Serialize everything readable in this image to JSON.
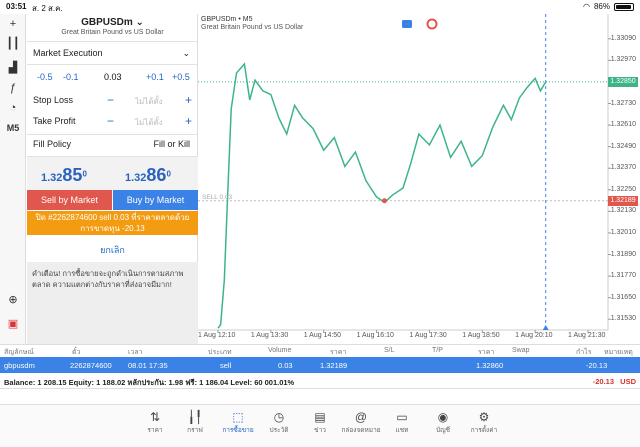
{
  "status": {
    "time": "03:51",
    "date": "ส. 2 ส.ค.",
    "battery": "86%"
  },
  "toolbar": {
    "tools": [
      "crosshair",
      "candle-chart",
      "bar-chart",
      "function",
      "objects",
      "timeframe"
    ],
    "timeframe": "M5"
  },
  "order": {
    "symbol": "GBPUSDm",
    "symbol_desc": "Great Britain Pound vs US Dollar",
    "execution": "Market Execution",
    "vol_steps": [
      "-0.5",
      "-0.1",
      "+0.1",
      "+0.5"
    ],
    "volume": "0.03",
    "stop_loss_label": "Stop Loss",
    "take_profit_label": "Take Profit",
    "placeholder": "ไม่ได้ตั้ง",
    "fill_policy_label": "Fill Policy",
    "fill_policy_value": "Fill or Kill",
    "bid": {
      "prefix": "1.32",
      "big": "85",
      "sup": "0"
    },
    "ask": {
      "prefix": "1.32",
      "big": "86",
      "sup": "0"
    },
    "sell_label": "Sell by Market",
    "buy_label": "Buy by Market",
    "order_msg_line1": "ปิด #2262874600 sell 0.03 ที่ราคาตลาดด้วย",
    "order_msg_line2": "การขาดทุน -20.13",
    "cancel_label": "ยกเลิก",
    "warning": "คำเตือน! การซื้อขายจะถูกดำเนินการตามสภาพตลาด ความแตกต่างกับราคาที่ส่งอาจมีมาก!"
  },
  "chart": {
    "title": "GBPUSDm • M5",
    "desc": "Great Britain Pound vs US Dollar",
    "current_price": "1.32850",
    "sell_label": "SELL 0.03",
    "sell_price": "1.32189",
    "y_ticks": [
      "1.33090",
      "1.32970",
      "1.32850",
      "1.32730",
      "1.32610",
      "1.32490",
      "1.32370",
      "1.32250",
      "1.32130",
      "1.32010",
      "1.31890",
      "1.31770",
      "1.31650",
      "1.31530"
    ],
    "x_ticks": [
      "1 Aug 12:10",
      "1 Aug 13:30",
      "1 Aug 14:50",
      "1 Aug 16:10",
      "1 Aug 17:30",
      "1 Aug 18:50",
      "1 Aug 20:10",
      "1 Aug 21:30"
    ],
    "colors": {
      "line": "#3eb489",
      "sell": "#e0574d",
      "grid": "#e6e6e6"
    }
  },
  "chart_data": {
    "type": "line",
    "x": [
      "1 Aug 12:10",
      "1 Aug 13:30",
      "1 Aug 14:50",
      "1 Aug 16:10",
      "1 Aug 17:30",
      "1 Aug 18:50",
      "1 Aug 20:10"
    ],
    "points": [
      [
        0,
        1.3148
      ],
      [
        0.05,
        1.315
      ],
      [
        0.12,
        1.3175
      ],
      [
        0.18,
        1.322
      ],
      [
        0.25,
        1.327
      ],
      [
        0.35,
        1.329
      ],
      [
        0.5,
        1.3295
      ],
      [
        0.6,
        1.3275
      ],
      [
        0.7,
        1.3286
      ],
      [
        0.85,
        1.328
      ],
      [
        1.0,
        1.3278
      ],
      [
        1.15,
        1.3265
      ],
      [
        1.3,
        1.3256
      ],
      [
        1.45,
        1.3272
      ],
      [
        1.6,
        1.3265
      ],
      [
        1.8,
        1.3259
      ],
      [
        2.0,
        1.3247
      ],
      [
        2.2,
        1.3254
      ],
      [
        2.4,
        1.3238
      ],
      [
        2.6,
        1.3246
      ],
      [
        2.8,
        1.323
      ],
      [
        3.0,
        1.3221
      ],
      [
        3.15,
        1.3218
      ],
      [
        3.3,
        1.3222
      ],
      [
        3.5,
        1.3226
      ],
      [
        3.65,
        1.324
      ],
      [
        3.8,
        1.3256
      ],
      [
        4.0,
        1.325
      ],
      [
        4.2,
        1.3261
      ],
      [
        4.4,
        1.3243
      ],
      [
        4.6,
        1.3252
      ],
      [
        4.8,
        1.3238
      ],
      [
        5.0,
        1.3244
      ],
      [
        5.2,
        1.326
      ],
      [
        5.4,
        1.3272
      ],
      [
        5.55,
        1.3264
      ],
      [
        5.7,
        1.3276
      ],
      [
        5.85,
        1.3282
      ],
      [
        6.0,
        1.3287
      ],
      [
        6.1,
        1.328
      ],
      [
        6.2,
        1.3285
      ]
    ],
    "xlabel": "",
    "ylabel": "",
    "ylim": [
      1.3147,
      1.3315
    ],
    "grid": true
  },
  "positions": {
    "headers": [
      "สัญลักษณ์",
      "ตั๋ว",
      "เวลา",
      "ประเภท",
      "Volume",
      "ราคา",
      "S/L",
      "T/P",
      "ราคา",
      "Swap",
      "กำไร",
      "หมายเหตุ"
    ],
    "row": {
      "symbol": "gbpusdm",
      "ticket": "2262874600",
      "time": "08.01 17:35",
      "type": "sell",
      "volume": "0.03",
      "price": "1.32189",
      "cur_price": "1.32860",
      "profit": "-20.13"
    },
    "balance": "Balance: 1 208.15 Equity: 1 188.02 หลักประกัน: 1.98 ฟรี: 1 186.04 Level: 60 001.01%",
    "total_pl": "-20.13",
    "currency": "USD"
  },
  "tabs": [
    {
      "label": "ราคา",
      "icon": "arrows-updown-icon"
    },
    {
      "label": "กราฟ",
      "icon": "candles-icon"
    },
    {
      "label": "การซื้อขาย",
      "icon": "trend-icon"
    },
    {
      "label": "ประวัติ",
      "icon": "history-icon"
    },
    {
      "label": "ข่าว",
      "icon": "news-icon"
    },
    {
      "label": "กล่องจดหมาย",
      "icon": "at-icon"
    },
    {
      "label": "แชท",
      "icon": "chat-icon"
    },
    {
      "label": "บัญชี",
      "icon": "account-icon"
    },
    {
      "label": "การตั้งค่า",
      "icon": "gear-icon"
    }
  ]
}
